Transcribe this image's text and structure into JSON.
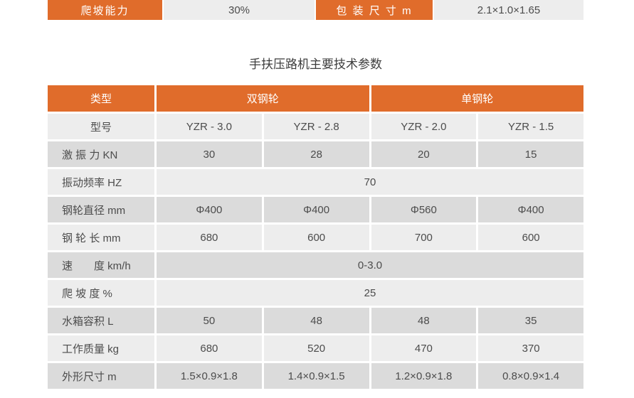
{
  "colors": {
    "accent_orange": "#e06c2b",
    "row_light": "#ededed",
    "row_dark": "#dbdbdb",
    "header_text": "#ffffff",
    "body_text": "#4c4c4c"
  },
  "top_strip": {
    "climb_label": "爬坡能力",
    "climb_value": "30%",
    "package_label": "包 装 尺 寸 m",
    "package_value": "2.1×1.0×1.65"
  },
  "title": "手扶压路机主要技术参数",
  "table": {
    "header": {
      "type_col": "类型",
      "double_drum": "双钢轮",
      "single_drum": "单钢轮"
    },
    "rows": [
      {
        "label": "型号",
        "values": [
          "YZR - 3.0",
          "YZR - 2.8",
          "YZR - 2.0",
          "YZR - 1.5"
        ]
      },
      {
        "label": "激 振 力 KN",
        "values": [
          "30",
          "28",
          "20",
          "15"
        ]
      },
      {
        "label": "振动频率 HZ",
        "merged_value": "70"
      },
      {
        "label": "钢轮直径 mm",
        "values": [
          "Φ400",
          "Φ400",
          "Φ560",
          "Φ400"
        ]
      },
      {
        "label": "钢 轮 长 mm",
        "values": [
          "680",
          "600",
          "700",
          "600"
        ]
      },
      {
        "label": "速　　度 km/h",
        "merged_value": "0-3.0"
      },
      {
        "label": "爬 坡 度 %",
        "merged_value": "25"
      },
      {
        "label": "水箱容积 L",
        "values": [
          "50",
          "48",
          "48",
          "35"
        ]
      },
      {
        "label": "工作质量 kg",
        "values": [
          "680",
          "520",
          "470",
          "370"
        ]
      },
      {
        "label": "外形尺寸 m",
        "values": [
          "1.5×0.9×1.8",
          "1.4×0.9×1.5",
          "1.2×0.9×1.8",
          "0.8×0.9×1.4"
        ]
      }
    ]
  }
}
